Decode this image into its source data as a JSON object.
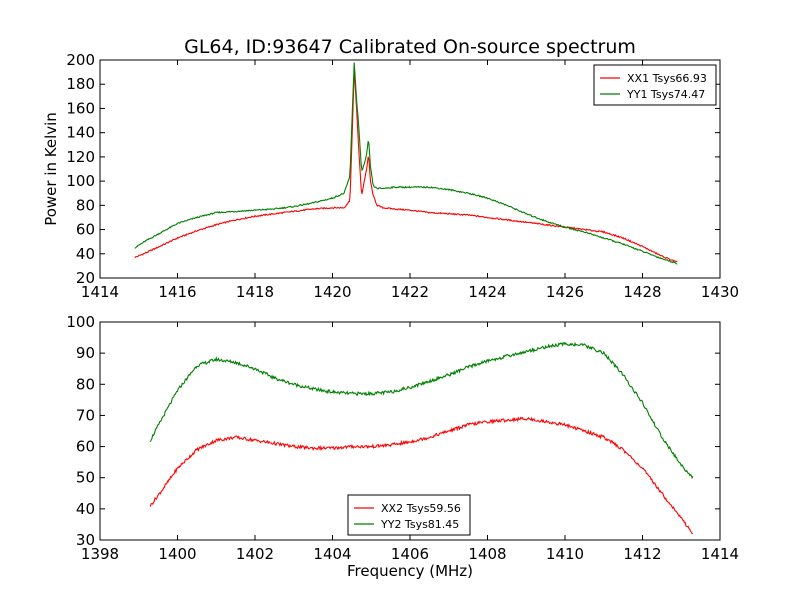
{
  "figure": {
    "title": "GL64, ID:93647 Calibrated On-source spectrum",
    "top_ylabel": "Power in Kelvin",
    "bottom_xlabel": "Frequency (MHz)"
  },
  "chart_data": [
    {
      "type": "line",
      "title": "GL64, ID:93647 Calibrated On-source spectrum",
      "xlabel": "",
      "ylabel": "Power in Kelvin",
      "xlim": [
        1414,
        1430
      ],
      "ylim": [
        20,
        200
      ],
      "xticks": [
        1414,
        1416,
        1418,
        1420,
        1422,
        1424,
        1426,
        1428,
        1430
      ],
      "yticks": [
        20,
        40,
        60,
        80,
        100,
        120,
        140,
        160,
        180,
        200
      ],
      "grid": false,
      "legend_position": "top-right",
      "series": [
        {
          "name": "XX1 Tsys66.93",
          "color": "#ff0000",
          "x": [
            1414.9,
            1415.2,
            1415.6,
            1416.0,
            1416.5,
            1417.0,
            1417.5,
            1418.0,
            1418.5,
            1419.0,
            1419.5,
            1420.0,
            1420.3,
            1420.45,
            1420.52,
            1420.56,
            1420.62,
            1420.68,
            1420.75,
            1420.82,
            1420.88,
            1420.93,
            1420.98,
            1421.05,
            1421.15,
            1421.3,
            1421.6,
            1422.0,
            1422.5,
            1423.0,
            1423.5,
            1424.0,
            1424.5,
            1425.0,
            1425.5,
            1426.0,
            1426.5,
            1427.0,
            1427.5,
            1428.0,
            1428.5,
            1428.9
          ],
          "y": [
            37,
            41,
            47,
            53,
            59,
            64,
            68,
            71,
            73,
            75,
            77,
            78,
            78,
            84,
            150,
            192,
            160,
            125,
            88,
            100,
            110,
            122,
            100,
            88,
            80,
            78,
            77,
            76,
            74,
            73,
            72,
            70,
            68,
            66,
            64,
            62,
            60,
            58,
            53,
            46,
            38,
            33
          ]
        },
        {
          "name": "YY1 Tsys74.47",
          "color": "#008000",
          "x": [
            1414.9,
            1415.2,
            1415.6,
            1416.0,
            1416.5,
            1417.0,
            1417.5,
            1418.0,
            1418.5,
            1419.0,
            1419.5,
            1420.0,
            1420.3,
            1420.45,
            1420.52,
            1420.56,
            1420.62,
            1420.68,
            1420.75,
            1420.82,
            1420.88,
            1420.93,
            1420.98,
            1421.05,
            1421.15,
            1421.3,
            1421.6,
            1422.0,
            1422.5,
            1423.0,
            1423.5,
            1424.0,
            1424.5,
            1425.0,
            1425.5,
            1426.0,
            1426.5,
            1427.0,
            1427.5,
            1428.0,
            1428.5,
            1428.9
          ],
          "y": [
            45,
            51,
            58,
            65,
            70,
            74,
            75,
            76,
            77,
            79,
            82,
            86,
            90,
            104,
            165,
            198,
            168,
            144,
            108,
            114,
            122,
            135,
            112,
            96,
            94,
            94,
            95,
            95,
            95,
            93,
            90,
            86,
            80,
            73,
            67,
            62,
            58,
            53,
            48,
            42,
            36,
            32
          ]
        }
      ]
    },
    {
      "type": "line",
      "title": "",
      "xlabel": "Frequency (MHz)",
      "ylabel": "",
      "xlim": [
        1398,
        1414
      ],
      "ylim": [
        30,
        100
      ],
      "xticks": [
        1398,
        1400,
        1402,
        1404,
        1406,
        1408,
        1410,
        1412,
        1414
      ],
      "yticks": [
        30,
        40,
        50,
        60,
        70,
        80,
        90,
        100
      ],
      "grid": false,
      "legend_position": "bottom-center",
      "series": [
        {
          "name": "XX2 Tsys59.56",
          "color": "#ff0000",
          "x": [
            1399.3,
            1399.6,
            1400.0,
            1400.5,
            1401.0,
            1401.5,
            1402.0,
            1402.5,
            1403.0,
            1403.5,
            1404.0,
            1404.5,
            1405.0,
            1405.5,
            1406.0,
            1406.5,
            1407.0,
            1407.5,
            1408.0,
            1408.5,
            1409.0,
            1409.5,
            1410.0,
            1410.5,
            1411.0,
            1411.5,
            1412.0,
            1412.5,
            1413.0,
            1413.3
          ],
          "y": [
            41,
            46,
            53,
            59,
            62,
            63,
            62,
            61,
            60,
            59.5,
            59.5,
            60,
            60,
            60.5,
            61.5,
            63,
            65,
            67,
            68,
            68.5,
            69,
            68,
            67,
            65,
            63,
            59,
            53,
            45,
            37,
            32
          ]
        },
        {
          "name": "YY2 Tsys81.45",
          "color": "#008000",
          "x": [
            1399.3,
            1399.6,
            1400.0,
            1400.5,
            1401.0,
            1401.5,
            1402.0,
            1402.5,
            1403.0,
            1403.5,
            1404.0,
            1404.5,
            1405.0,
            1405.5,
            1406.0,
            1406.5,
            1407.0,
            1407.5,
            1408.0,
            1408.5,
            1409.0,
            1409.5,
            1410.0,
            1410.5,
            1411.0,
            1411.5,
            1412.0,
            1412.5,
            1413.0,
            1413.3
          ],
          "y": [
            62,
            69,
            78,
            86,
            88,
            87,
            85,
            82,
            80,
            78.5,
            77.5,
            77,
            77,
            77.5,
            79,
            81,
            83,
            85.5,
            87.5,
            89,
            90.5,
            92,
            93,
            92.5,
            90,
            83,
            74,
            63,
            54,
            50
          ]
        }
      ]
    }
  ]
}
